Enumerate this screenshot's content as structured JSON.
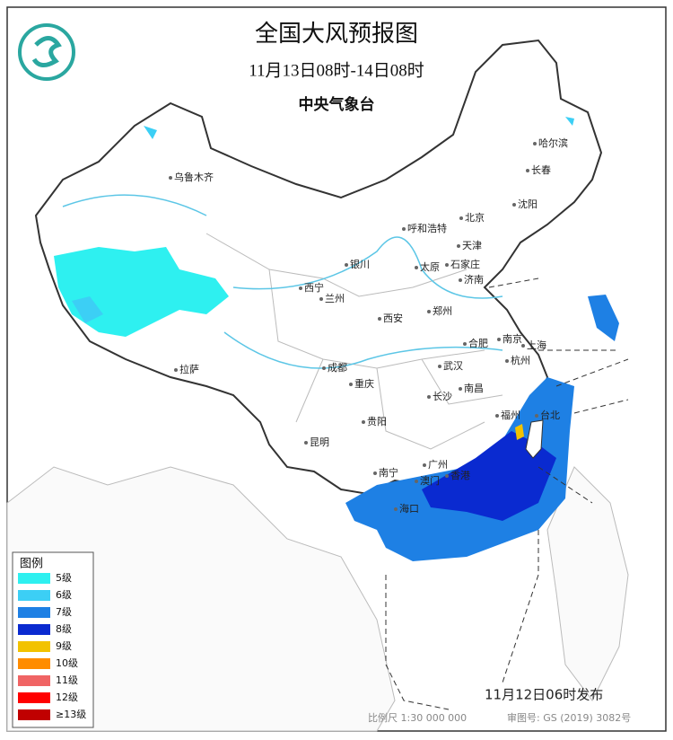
{
  "header": {
    "title": "全国大风预报图",
    "period": "11月13日08时-14日08时",
    "issuer": "中央气象台"
  },
  "cities": [
    {
      "label": "乌鲁木齐"
    },
    {
      "label": "哈尔滨"
    },
    {
      "label": "长春"
    },
    {
      "label": "沈阳"
    },
    {
      "label": "北京"
    },
    {
      "label": "呼和浩特"
    },
    {
      "label": "天津"
    },
    {
      "label": "石家庄"
    },
    {
      "label": "太原"
    },
    {
      "label": "银川"
    },
    {
      "label": "济南"
    },
    {
      "label": "西宁"
    },
    {
      "label": "兰州"
    },
    {
      "label": "郑州"
    },
    {
      "label": "西安"
    },
    {
      "label": "合肥"
    },
    {
      "label": "南京"
    },
    {
      "label": "上海"
    },
    {
      "label": "杭州"
    },
    {
      "label": "武汉"
    },
    {
      "label": "成都"
    },
    {
      "label": "拉萨"
    },
    {
      "label": "重庆"
    },
    {
      "label": "南昌"
    },
    {
      "label": "长沙"
    },
    {
      "label": "福州"
    },
    {
      "label": "台北"
    },
    {
      "label": "贵阳"
    },
    {
      "label": "昆明"
    },
    {
      "label": "广州"
    },
    {
      "label": "南宁"
    },
    {
      "label": "澳门"
    },
    {
      "label": "香港"
    },
    {
      "label": "海口"
    }
  ],
  "legend": {
    "title": "图例",
    "items": [
      {
        "label": "5级",
        "color": "#2ef0f0"
      },
      {
        "label": "6级",
        "color": "#3ccff5"
      },
      {
        "label": "7级",
        "color": "#1e80e4"
      },
      {
        "label": "8级",
        "color": "#0a2ad0"
      },
      {
        "label": "9级",
        "color": "#f2c200"
      },
      {
        "label": "10级",
        "color": "#ff8c00"
      },
      {
        "label": "11级",
        "color": "#f06464"
      },
      {
        "label": "12级",
        "color": "#ff0000"
      },
      {
        "label": "≥13级",
        "color": "#c00000"
      }
    ]
  },
  "footer": {
    "issued": "11月12日06时发布",
    "scale": "比例尺 1:30 000 000",
    "review": "审图号: GS (2019) 3082号"
  }
}
